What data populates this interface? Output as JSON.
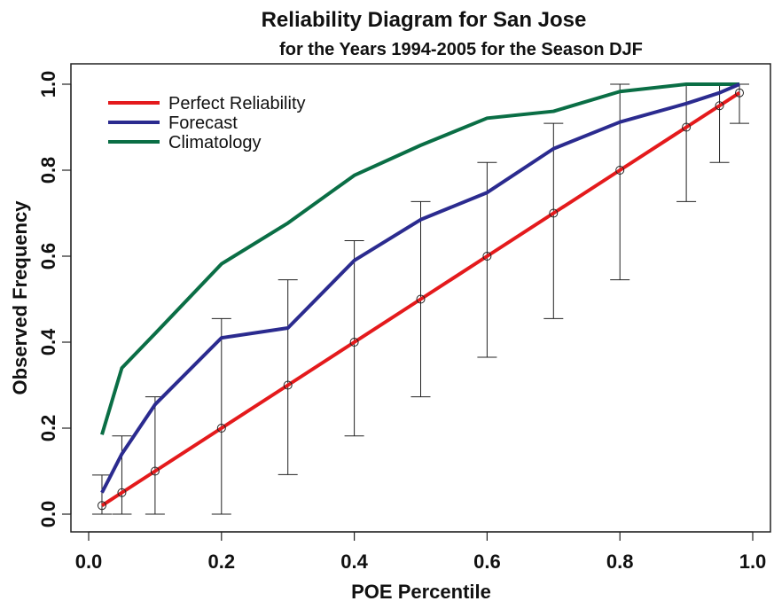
{
  "chart_data": {
    "type": "line",
    "title": "Reliability Diagram for San Jose",
    "subtitle": "for the Years 1994-2005 for the Season  DJF",
    "xlabel": "POE Percentile",
    "ylabel": "Observed Frequency",
    "xlim": [
      0.0,
      1.0
    ],
    "ylim": [
      0.0,
      1.0
    ],
    "x_ticks": [
      "0.0",
      "0.2",
      "0.4",
      "0.6",
      "0.8",
      "1.0"
    ],
    "y_ticks": [
      "0.0",
      "0.2",
      "0.4",
      "0.6",
      "0.8",
      "1.0"
    ],
    "grid": false,
    "legend_position": "top-left",
    "x": [
      0.02,
      0.05,
      0.1,
      0.2,
      0.3,
      0.4,
      0.5,
      0.6,
      0.7,
      0.8,
      0.9,
      0.95,
      0.98
    ],
    "series": [
      {
        "name": "Perfect Reliability",
        "color": "#e41a1c",
        "values": [
          0.02,
          0.05,
          0.1,
          0.2,
          0.3,
          0.4,
          0.5,
          0.6,
          0.7,
          0.8,
          0.9,
          0.95,
          0.98
        ],
        "markers": "open-circle"
      },
      {
        "name": "Forecast",
        "color": "#2b2b8f",
        "values": [
          0.05,
          0.14,
          0.255,
          0.41,
          0.433,
          0.59,
          0.685,
          0.748,
          0.85,
          0.912,
          0.955,
          0.98,
          1.0
        ]
      },
      {
        "name": "Climatology",
        "color": "#0a6e45",
        "values": [
          0.185,
          0.34,
          0.42,
          0.582,
          0.677,
          0.788,
          0.858,
          0.921,
          0.937,
          0.983,
          1.0,
          1.0,
          1.0
        ]
      }
    ],
    "error_bars": {
      "x": [
        0.02,
        0.05,
        0.1,
        0.2,
        0.3,
        0.4,
        0.5,
        0.6,
        0.7,
        0.8,
        0.9,
        0.95,
        0.98
      ],
      "lower": [
        0.0,
        0.0,
        0.0,
        0.0,
        0.092,
        0.182,
        0.273,
        0.365,
        0.455,
        0.545,
        0.727,
        0.818,
        0.909
      ],
      "upper": [
        0.091,
        0.182,
        0.273,
        0.455,
        0.545,
        0.636,
        0.727,
        0.818,
        0.909,
        1.0,
        1.0,
        1.0,
        1.0
      ]
    }
  }
}
